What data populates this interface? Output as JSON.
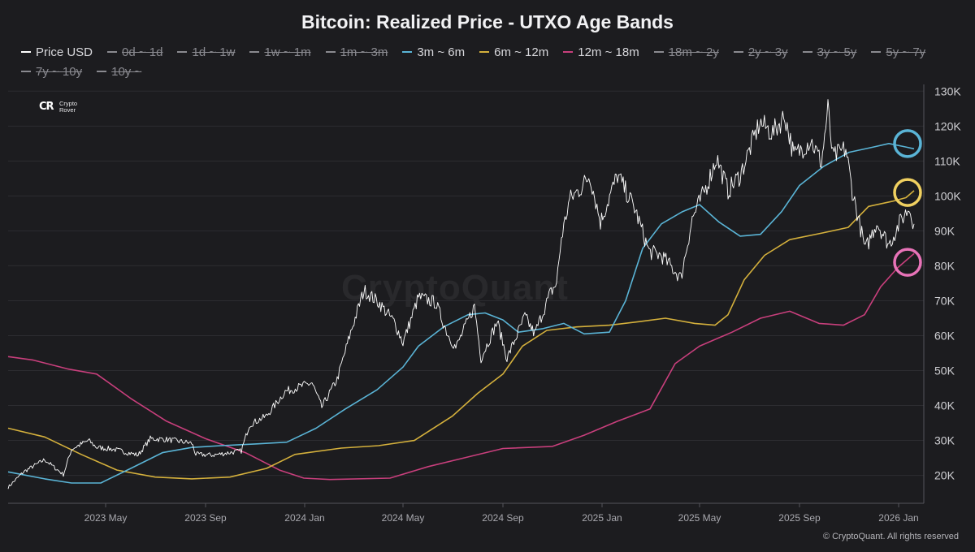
{
  "header": {
    "title": "Bitcoin: Realized Price - UTXO Age Bands"
  },
  "brand": {
    "mark": "CR",
    "line1": "Crypto",
    "line2": "Rover",
    "icon": "crypto-rover-logo-icon"
  },
  "watermark": "CryptoQuant",
  "copyright": "© CryptoQuant. All rights reserved",
  "legend": [
    {
      "label": "Price USD",
      "color": "#ffffff",
      "active": true
    },
    {
      "label": "0d ~ 1d",
      "color": "#8a8a90",
      "active": false
    },
    {
      "label": "1d ~ 1w",
      "color": "#8a8a90",
      "active": false
    },
    {
      "label": "1w ~ 1m",
      "color": "#8a8a90",
      "active": false
    },
    {
      "label": "1m ~ 3m",
      "color": "#8a8a90",
      "active": false
    },
    {
      "label": "3m ~ 6m",
      "color": "#5ab4d6",
      "active": true
    },
    {
      "label": "6m ~ 12m",
      "color": "#d4b03c",
      "active": true
    },
    {
      "label": "12m ~ 18m",
      "color": "#c83f7c",
      "active": true
    },
    {
      "label": "18m ~ 2y",
      "color": "#8a8a90",
      "active": false
    },
    {
      "label": "2y ~ 3y",
      "color": "#8a8a90",
      "active": false
    },
    {
      "label": "3y ~ 5y",
      "color": "#8a8a90",
      "active": false
    },
    {
      "label": "5y ~ 7y",
      "color": "#8a8a90",
      "active": false
    },
    {
      "label": "7y ~ 10y",
      "color": "#8a8a90",
      "active": false
    },
    {
      "label": "10y ~",
      "color": "#8a8a90",
      "active": false
    }
  ],
  "chart_data": {
    "type": "line",
    "title": "Bitcoin: Realized Price - UTXO Age Bands",
    "x_ticks": [
      "2023 May",
      "2023 Sep",
      "2024 Jan",
      "2024 May",
      "2024 Sep",
      "2025 Jan",
      "2025 May",
      "2025 Sep",
      "2026 Jan"
    ],
    "x_tick_dates": [
      "2023-05-01",
      "2023-09-01",
      "2024-01-01",
      "2024-05-01",
      "2024-09-01",
      "2025-01-01",
      "2025-05-01",
      "2025-09-01",
      "2026-01-01"
    ],
    "x_range": [
      "2023-01-01",
      "2026-02-01"
    ],
    "y_ticks": [
      20000,
      30000,
      40000,
      50000,
      60000,
      70000,
      80000,
      90000,
      100000,
      110000,
      120000,
      130000
    ],
    "y_tick_labels": [
      "20K",
      "30K",
      "40K",
      "50K",
      "60K",
      "70K",
      "80K",
      "90K",
      "100K",
      "110K",
      "120K",
      "130K"
    ],
    "ylim": [
      12000,
      131000
    ],
    "y_axis_side": "right",
    "grid": "horizontal",
    "legend_position": "top",
    "series": [
      {
        "name": "Price USD",
        "color": "#ffffff",
        "points": [
          [
            "2023-01-01",
            16600
          ],
          [
            "2023-01-20",
            21000
          ],
          [
            "2023-02-15",
            24500
          ],
          [
            "2023-03-10",
            20200
          ],
          [
            "2023-03-20",
            27500
          ],
          [
            "2023-04-10",
            30000
          ],
          [
            "2023-04-20",
            28000
          ],
          [
            "2023-05-10",
            27500
          ],
          [
            "2023-06-10",
            25800
          ],
          [
            "2023-06-25",
            30500
          ],
          [
            "2023-07-15",
            30300
          ],
          [
            "2023-08-15",
            29200
          ],
          [
            "2023-08-20",
            26000
          ],
          [
            "2023-09-10",
            25800
          ],
          [
            "2023-10-15",
            27000
          ],
          [
            "2023-10-25",
            34500
          ],
          [
            "2023-11-15",
            37000
          ],
          [
            "2023-12-08",
            44000
          ],
          [
            "2024-01-10",
            46500
          ],
          [
            "2024-01-22",
            39500
          ],
          [
            "2024-02-10",
            47500
          ],
          [
            "2024-02-28",
            62000
          ],
          [
            "2024-03-14",
            73000
          ],
          [
            "2024-04-01",
            69500
          ],
          [
            "2024-04-20",
            64000
          ],
          [
            "2024-05-01",
            58000
          ],
          [
            "2024-05-20",
            71000
          ],
          [
            "2024-06-10",
            69500
          ],
          [
            "2024-06-25",
            60500
          ],
          [
            "2024-07-05",
            56500
          ],
          [
            "2024-07-28",
            68500
          ],
          [
            "2024-08-05",
            53500
          ],
          [
            "2024-08-25",
            64000
          ],
          [
            "2024-09-06",
            53500
          ],
          [
            "2024-09-28",
            65500
          ],
          [
            "2024-10-10",
            60500
          ],
          [
            "2024-10-29",
            72000
          ],
          [
            "2024-11-06",
            75000
          ],
          [
            "2024-11-12",
            88000
          ],
          [
            "2024-11-22",
            99000
          ],
          [
            "2024-12-05",
            102000
          ],
          [
            "2024-12-17",
            106000
          ],
          [
            "2024-12-30",
            92500
          ],
          [
            "2025-01-20",
            106000
          ],
          [
            "2025-02-10",
            96500
          ],
          [
            "2025-02-28",
            84000
          ],
          [
            "2025-03-15",
            83000
          ],
          [
            "2025-04-08",
            76500
          ],
          [
            "2025-04-22",
            93500
          ],
          [
            "2025-05-10",
            103000
          ],
          [
            "2025-05-22",
            111000
          ],
          [
            "2025-06-05",
            101500
          ],
          [
            "2025-06-20",
            106000
          ],
          [
            "2025-07-14",
            121000
          ],
          [
            "2025-07-30",
            118000
          ],
          [
            "2025-08-14",
            123000
          ],
          [
            "2025-08-25",
            111500
          ],
          [
            "2025-09-15",
            116000
          ],
          [
            "2025-09-28",
            109500
          ],
          [
            "2025-10-06",
            125000
          ],
          [
            "2025-10-12",
            111000
          ],
          [
            "2025-10-28",
            113500
          ],
          [
            "2025-11-05",
            101500
          ],
          [
            "2025-11-21",
            84500
          ],
          [
            "2025-12-05",
            92500
          ],
          [
            "2025-12-20",
            86000
          ],
          [
            "2026-01-05",
            93500
          ],
          [
            "2026-01-14",
            96500
          ],
          [
            "2026-01-20",
            92000
          ]
        ]
      },
      {
        "name": "3m ~ 6m",
        "color": "#5ab4d6",
        "points": [
          [
            "2023-01-01",
            21000
          ],
          [
            "2023-02-15",
            19000
          ],
          [
            "2023-03-20",
            17800
          ],
          [
            "2023-04-25",
            17800
          ],
          [
            "2023-06-01",
            22000
          ],
          [
            "2023-07-10",
            26500
          ],
          [
            "2023-08-15",
            28000
          ],
          [
            "2023-09-20",
            28500
          ],
          [
            "2023-11-01",
            29000
          ],
          [
            "2023-12-10",
            29500
          ],
          [
            "2024-01-15",
            33500
          ],
          [
            "2024-02-20",
            39000
          ],
          [
            "2024-03-30",
            44500
          ],
          [
            "2024-05-01",
            51000
          ],
          [
            "2024-05-20",
            57000
          ],
          [
            "2024-06-20",
            62500
          ],
          [
            "2024-07-20",
            66000
          ],
          [
            "2024-08-10",
            66500
          ],
          [
            "2024-09-01",
            64500
          ],
          [
            "2024-09-20",
            61000
          ],
          [
            "2024-10-20",
            62000
          ],
          [
            "2024-11-15",
            63500
          ],
          [
            "2024-12-10",
            60500
          ],
          [
            "2025-01-10",
            61000
          ],
          [
            "2025-01-30",
            70000
          ],
          [
            "2025-02-20",
            85000
          ],
          [
            "2025-03-15",
            92000
          ],
          [
            "2025-04-10",
            95500
          ],
          [
            "2025-05-01",
            97500
          ],
          [
            "2025-05-25",
            92500
          ],
          [
            "2025-06-20",
            88500
          ],
          [
            "2025-07-15",
            89000
          ],
          [
            "2025-08-10",
            95500
          ],
          [
            "2025-09-01",
            103000
          ],
          [
            "2025-10-01",
            108500
          ],
          [
            "2025-11-01",
            112500
          ],
          [
            "2025-12-01",
            114000
          ],
          [
            "2025-12-20",
            115000
          ],
          [
            "2026-01-10",
            114000
          ],
          [
            "2026-01-20",
            113500
          ]
        ]
      },
      {
        "name": "6m ~ 12m",
        "color": "#d4b03c",
        "points": [
          [
            "2023-01-01",
            33500
          ],
          [
            "2023-02-15",
            31000
          ],
          [
            "2023-04-01",
            26000
          ],
          [
            "2023-05-15",
            21500
          ],
          [
            "2023-07-01",
            19500
          ],
          [
            "2023-08-15",
            19000
          ],
          [
            "2023-10-01",
            19500
          ],
          [
            "2023-11-15",
            22000
          ],
          [
            "2023-12-20",
            26000
          ],
          [
            "2024-02-15",
            27800
          ],
          [
            "2024-04-01",
            28500
          ],
          [
            "2024-05-15",
            30000
          ],
          [
            "2024-07-01",
            37000
          ],
          [
            "2024-08-01",
            43500
          ],
          [
            "2024-09-01",
            49000
          ],
          [
            "2024-09-25",
            57000
          ],
          [
            "2024-10-25",
            61500
          ],
          [
            "2024-12-01",
            62500
          ],
          [
            "2025-01-10",
            63000
          ],
          [
            "2025-02-15",
            64000
          ],
          [
            "2025-03-20",
            65000
          ],
          [
            "2025-04-25",
            63500
          ],
          [
            "2025-05-20",
            63000
          ],
          [
            "2025-06-05",
            66000
          ],
          [
            "2025-06-25",
            76000
          ],
          [
            "2025-07-20",
            83000
          ],
          [
            "2025-08-20",
            87500
          ],
          [
            "2025-10-01",
            89500
          ],
          [
            "2025-10-31",
            91000
          ],
          [
            "2025-11-25",
            97000
          ],
          [
            "2025-12-25",
            98500
          ],
          [
            "2026-01-10",
            99500
          ],
          [
            "2026-01-20",
            101500
          ]
        ]
      },
      {
        "name": "12m ~ 18m",
        "color": "#c83f7c",
        "points": [
          [
            "2023-01-01",
            54000
          ],
          [
            "2023-02-01",
            53000
          ],
          [
            "2023-03-15",
            50500
          ],
          [
            "2023-04-20",
            49000
          ],
          [
            "2023-06-01",
            42000
          ],
          [
            "2023-07-15",
            35500
          ],
          [
            "2023-09-01",
            30500
          ],
          [
            "2023-10-20",
            26500
          ],
          [
            "2023-12-01",
            21500
          ],
          [
            "2023-12-31",
            19200
          ],
          [
            "2024-02-01",
            18800
          ],
          [
            "2024-04-15",
            19200
          ],
          [
            "2024-06-01",
            22500
          ],
          [
            "2024-07-15",
            25000
          ],
          [
            "2024-09-01",
            27700
          ],
          [
            "2024-11-01",
            28300
          ],
          [
            "2024-12-10",
            31500
          ],
          [
            "2025-01-20",
            35500
          ],
          [
            "2025-03-01",
            39000
          ],
          [
            "2025-04-01",
            52000
          ],
          [
            "2025-05-01",
            57000
          ],
          [
            "2025-06-10",
            61000
          ],
          [
            "2025-07-15",
            65000
          ],
          [
            "2025-08-20",
            67000
          ],
          [
            "2025-09-25",
            63500
          ],
          [
            "2025-10-25",
            63000
          ],
          [
            "2025-11-20",
            66000
          ],
          [
            "2025-12-10",
            74000
          ],
          [
            "2025-12-31",
            79500
          ],
          [
            "2026-01-20",
            83500
          ]
        ]
      }
    ],
    "annotations": [
      {
        "type": "circle",
        "series": "3m ~ 6m",
        "date": "2026-01-12",
        "value": 115000,
        "color": "#5ab4d6"
      },
      {
        "type": "circle",
        "series": "6m ~ 12m",
        "date": "2026-01-12",
        "value": 101000,
        "color": "#f0d060"
      },
      {
        "type": "circle",
        "series": "12m ~ 18m",
        "date": "2026-01-12",
        "value": 81000,
        "color": "#e873b8"
      }
    ]
  }
}
